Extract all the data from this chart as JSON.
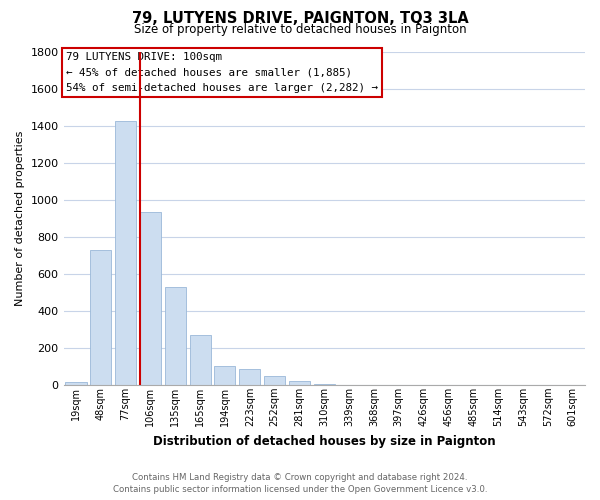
{
  "title": "79, LUTYENS DRIVE, PAIGNTON, TQ3 3LA",
  "subtitle": "Size of property relative to detached houses in Paignton",
  "xlabel": "Distribution of detached houses by size in Paignton",
  "ylabel": "Number of detached properties",
  "bar_labels": [
    "19sqm",
    "48sqm",
    "77sqm",
    "106sqm",
    "135sqm",
    "165sqm",
    "194sqm",
    "223sqm",
    "252sqm",
    "281sqm",
    "310sqm",
    "339sqm",
    "368sqm",
    "397sqm",
    "426sqm",
    "456sqm",
    "485sqm",
    "514sqm",
    "543sqm",
    "572sqm",
    "601sqm"
  ],
  "bar_values": [
    20,
    730,
    1425,
    935,
    530,
    270,
    105,
    90,
    50,
    25,
    5,
    3,
    2,
    1,
    1,
    0,
    0,
    0,
    0,
    0,
    0
  ],
  "bar_color": "#ccddf0",
  "bar_edge_color": "#9ab8d8",
  "vline_color": "#cc0000",
  "annotation_title": "79 LUTYENS DRIVE: 100sqm",
  "annotation_line1": "← 45% of detached houses are smaller (1,885)",
  "annotation_line2": "54% of semi-detached houses are larger (2,282) →",
  "ylim_max": 1800,
  "yticks": [
    0,
    200,
    400,
    600,
    800,
    1000,
    1200,
    1400,
    1600,
    1800
  ],
  "footer_line1": "Contains HM Land Registry data © Crown copyright and database right 2024.",
  "footer_line2": "Contains public sector information licensed under the Open Government Licence v3.0.",
  "bg_color": "#ffffff",
  "grid_color": "#c8d4e8"
}
